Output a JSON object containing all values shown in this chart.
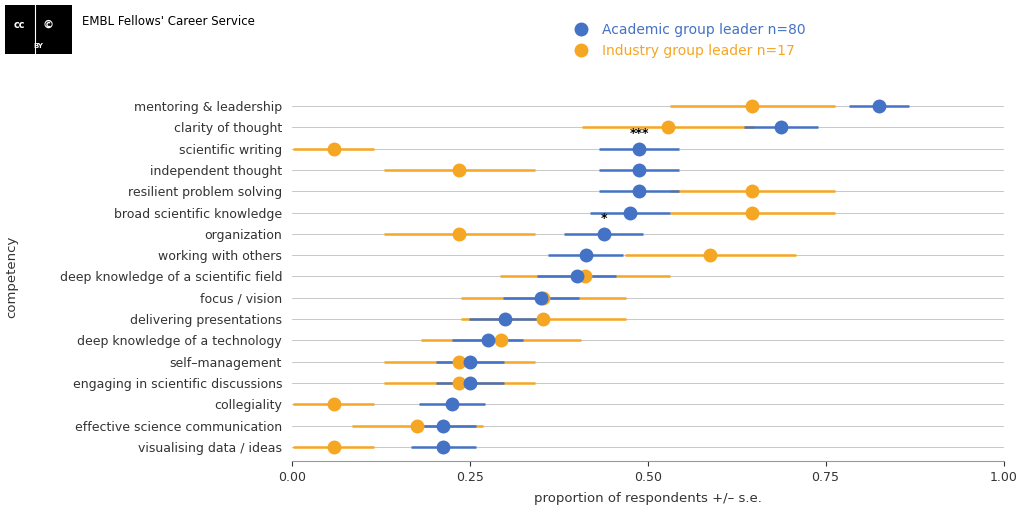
{
  "competencies": [
    "mentoring & leadership",
    "clarity of thought",
    "scientific writing",
    "independent thought",
    "resilient problem solving",
    "broad scientific knowledge",
    "organization",
    "working with others",
    "deep knowledge of a scientific field",
    "focus / vision",
    "delivering presentations",
    "deep knowledge of a technology",
    "self–management",
    "engaging in scientific discussions",
    "collegiality",
    "effective science communication",
    "visualising data / ideas"
  ],
  "academic": {
    "values": [
      0.825,
      0.688,
      0.488,
      0.488,
      0.488,
      0.475,
      0.438,
      0.413,
      0.4,
      0.35,
      0.3,
      0.275,
      0.25,
      0.25,
      0.225,
      0.213,
      0.213
    ],
    "se": [
      0.042,
      0.052,
      0.056,
      0.056,
      0.056,
      0.056,
      0.056,
      0.053,
      0.055,
      0.053,
      0.051,
      0.05,
      0.048,
      0.048,
      0.047,
      0.046,
      0.046
    ]
  },
  "industry": {
    "values": [
      0.647,
      0.529,
      0.059,
      0.235,
      0.647,
      0.647,
      0.235,
      0.588,
      0.412,
      0.353,
      0.353,
      0.294,
      0.235,
      0.235,
      0.059,
      0.176,
      0.059
    ],
    "se": [
      0.116,
      0.121,
      0.057,
      0.106,
      0.116,
      0.116,
      0.106,
      0.12,
      0.119,
      0.116,
      0.116,
      0.112,
      0.106,
      0.106,
      0.057,
      0.092,
      0.057
    ]
  },
  "academic_color": "#4472C4",
  "industry_color": "#F5A623",
  "background_color": "#FFFFFF",
  "plot_bg_color": "#FFFFFF",
  "grid_color": "#C8C8C8",
  "annotation_scientific_writing": "***",
  "annotation_organization": "*",
  "header_text": "EMBL Fellows' Career Service",
  "xlabel": "proportion of respondents +/– s.e.",
  "ylabel": "competency",
  "xlim": [
    0.0,
    1.0
  ],
  "legend_academic": "Academic group leader n=80",
  "legend_industry": "Industry group leader n=17",
  "marker_size": 9,
  "linewidth": 1.8
}
